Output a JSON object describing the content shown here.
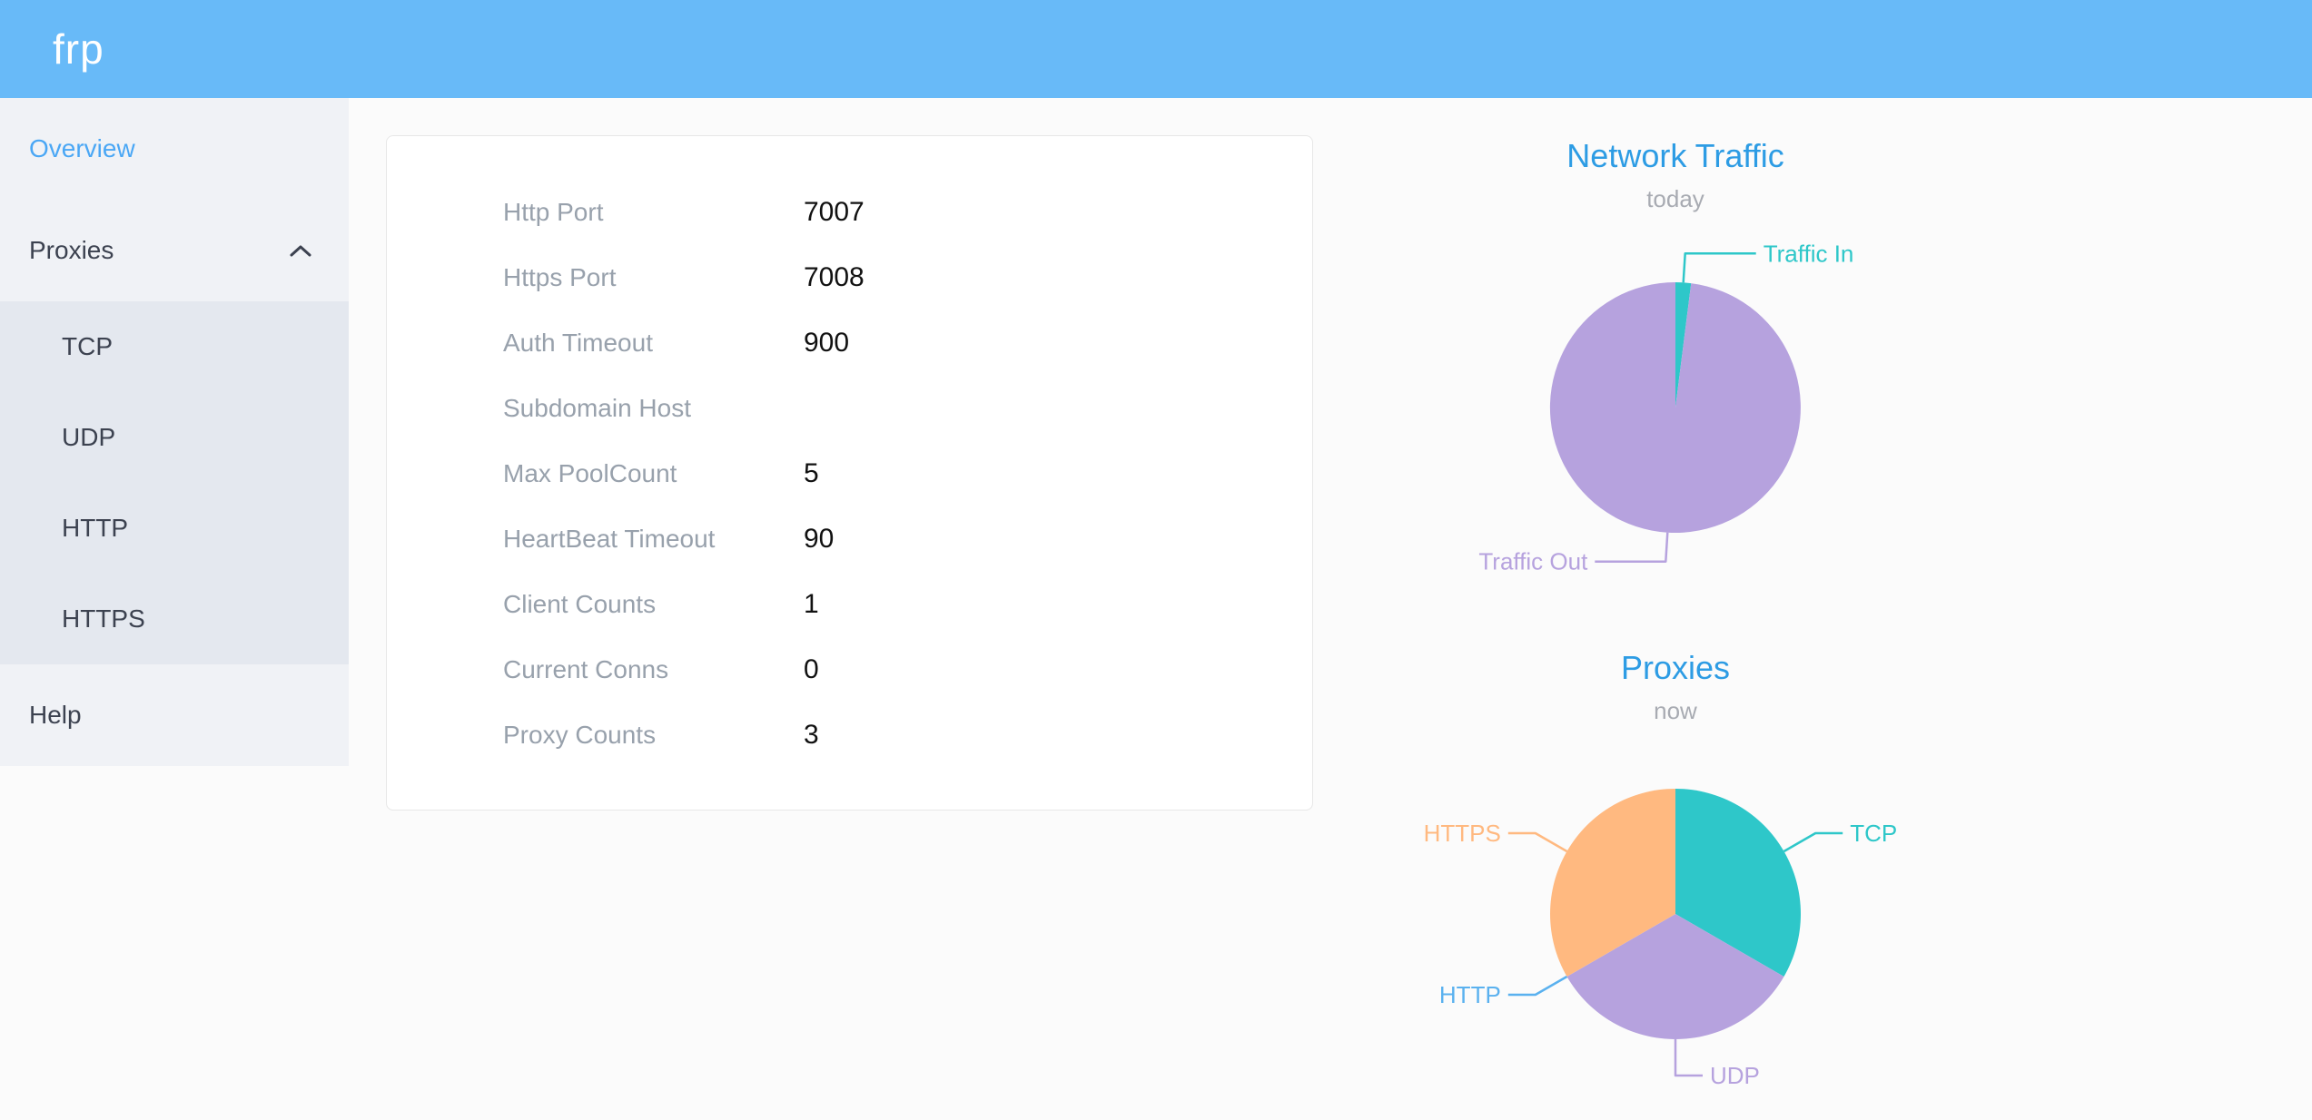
{
  "header": {
    "logo": "frp"
  },
  "colors": {
    "header_bg": "#68baf8",
    "sidebar_bg": "#f0f2f6",
    "submenu_bg": "#e4e8ef",
    "active_item_blue": "#4aa7f5",
    "chart_title_blue": "#2d9ce4",
    "pie_teal": "#2ec7c9",
    "pie_purple": "#b6a2de",
    "pie_blue": "#5ab1ef",
    "pie_orange": "#ffb980"
  },
  "sidebar": {
    "items": [
      {
        "label": "Overview",
        "active": true
      },
      {
        "label": "Proxies",
        "expanded": true,
        "children": [
          "TCP",
          "UDP",
          "HTTP",
          "HTTPS"
        ]
      },
      {
        "label": "Help"
      }
    ]
  },
  "overview": {
    "rows": [
      {
        "label": "Http Port",
        "value": "7007"
      },
      {
        "label": "Https Port",
        "value": "7008"
      },
      {
        "label": "Auth Timeout",
        "value": "900"
      },
      {
        "label": "Subdomain Host",
        "value": ""
      },
      {
        "label": "Max PoolCount",
        "value": "5"
      },
      {
        "label": "HeartBeat Timeout",
        "value": "90"
      },
      {
        "label": "Client Counts",
        "value": "1"
      },
      {
        "label": "Current Conns",
        "value": "0"
      },
      {
        "label": "Proxy Counts",
        "value": "3"
      }
    ]
  },
  "chart_data": [
    {
      "type": "pie",
      "title": "Network Traffic",
      "subtitle": "today",
      "legend_position": "none",
      "label_position": "outside",
      "label_line": {
        "len": 32,
        "len2": 78
      },
      "series": [
        {
          "name": "Traffic In",
          "value": 2,
          "color": "#2ec7c9"
        },
        {
          "name": "Traffic Out",
          "value": 98,
          "color": "#b6a2de"
        }
      ]
    },
    {
      "type": "pie",
      "title": "Proxies",
      "subtitle": "now",
      "legend_position": "none",
      "label_position": "outside",
      "label_line": {
        "len": 40,
        "len2": 30
      },
      "series": [
        {
          "name": "TCP",
          "value": 1,
          "color": "#2ec7c9"
        },
        {
          "name": "UDP",
          "value": 1,
          "color": "#b6a2de"
        },
        {
          "name": "HTTP",
          "value": 0,
          "color": "#5ab1ef"
        },
        {
          "name": "HTTPS",
          "value": 1,
          "color": "#ffb980"
        }
      ]
    }
  ]
}
